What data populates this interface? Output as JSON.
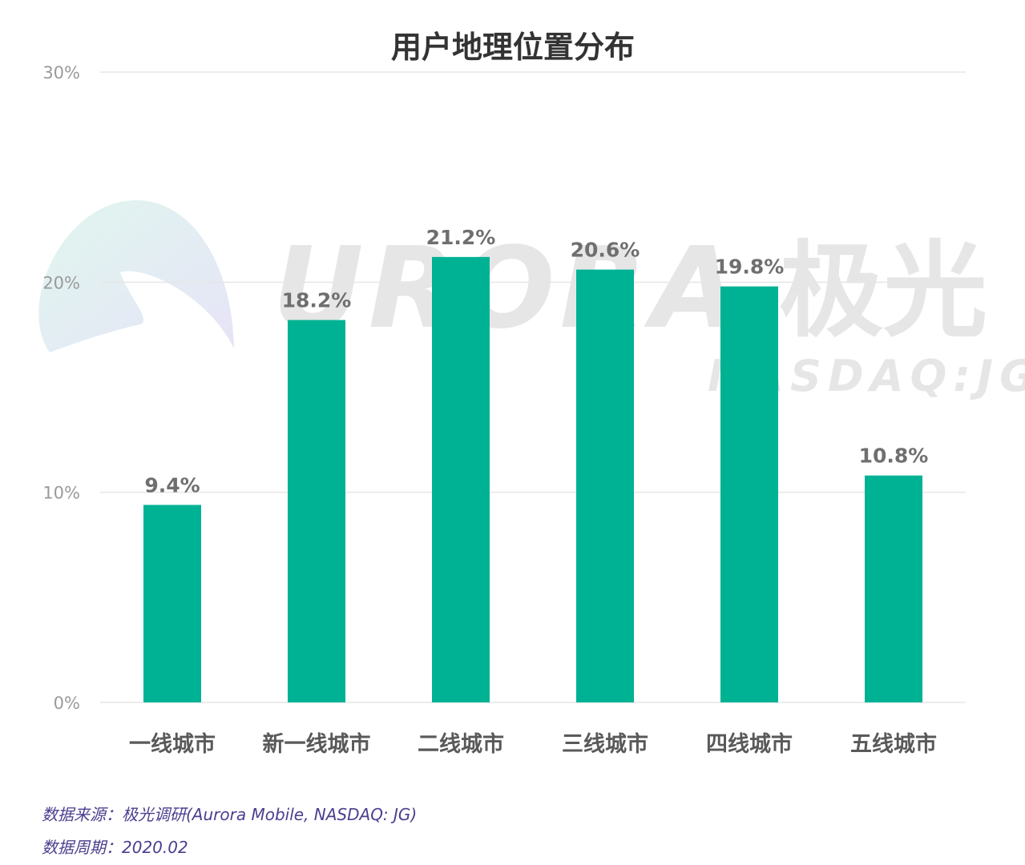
{
  "chart_data": {
    "type": "bar",
    "title": "用户地理位置分布",
    "categories": [
      "一线城市",
      "新一线城市",
      "二线城市",
      "三线城市",
      "四线城市",
      "五线城市"
    ],
    "values": [
      9.4,
      18.2,
      21.2,
      20.6,
      19.8,
      10.8
    ],
    "value_labels": [
      "9.4%",
      "18.2%",
      "21.2%",
      "20.6%",
      "19.8%",
      "10.8%"
    ],
    "y_ticks": [
      0,
      10,
      20,
      30
    ],
    "y_tick_labels": [
      "0%",
      "10%",
      "20%",
      "30%"
    ],
    "ylim": [
      0,
      30
    ],
    "grid": true,
    "legend": "none",
    "bar_color": "#00b294"
  },
  "watermark": {
    "brand": "URORA",
    "brand_cn": "极光",
    "ticker": "NASDAQ:JG"
  },
  "footnotes": {
    "source": "数据来源：极光调研(Aurora Mobile, NASDAQ: JG)",
    "period": "数据周期：2020.02"
  }
}
